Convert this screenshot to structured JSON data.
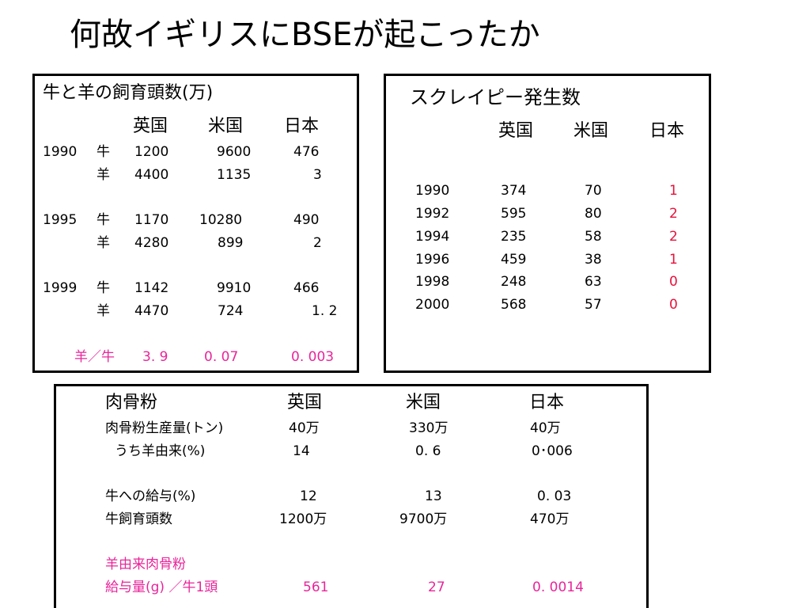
{
  "title": "何故イギリスにBSEが起こったか",
  "livestock": {
    "heading": "牛と羊の飼育頭数(万)",
    "columns": [
      "英国",
      "米国",
      "日本"
    ],
    "rows": [
      {
        "year": "1990",
        "kind": "牛",
        "uk": "1200",
        "us": "9600",
        "jp": "476"
      },
      {
        "year": "",
        "kind": "羊",
        "uk": "4400",
        "us": "1135",
        "jp": "3"
      },
      {
        "year": "1995",
        "kind": "牛",
        "uk": "1170",
        "us": "10280",
        "jp": "490"
      },
      {
        "year": "",
        "kind": "羊",
        "uk": "4280",
        "us": "899",
        "jp": "2"
      },
      {
        "year": "1999",
        "kind": "牛",
        "uk": "1142",
        "us": "9910",
        "jp": "466"
      },
      {
        "year": "",
        "kind": "羊",
        "uk": "4470",
        "us": "724",
        "jp": "1. 2"
      }
    ],
    "ratio": {
      "label": "羊／牛",
      "uk": "3. 9",
      "us": "0. 07",
      "jp": "0. 003"
    }
  },
  "scrapie": {
    "heading": "スクレイピー発生数",
    "columns": [
      "英国",
      "米国",
      "日本"
    ],
    "rows": [
      {
        "year": "1990",
        "uk": "374",
        "us": "70",
        "jp": "1"
      },
      {
        "year": "1992",
        "uk": "595",
        "us": "80",
        "jp": "2"
      },
      {
        "year": "1994",
        "uk": "235",
        "us": "58",
        "jp": "2"
      },
      {
        "year": "1996",
        "uk": "459",
        "us": "38",
        "jp": "1"
      },
      {
        "year": "1998",
        "uk": "248",
        "us": "63",
        "jp": "0"
      },
      {
        "year": "2000",
        "uk": "568",
        "us": "57",
        "jp": "0"
      }
    ]
  },
  "meatbone": {
    "heading": "肉骨粉",
    "columns": [
      "英国",
      "米国",
      "日本"
    ],
    "rows": [
      {
        "label": "肉骨粉生産量(トン)",
        "uk": "40万",
        "us": "330万",
        "jp": "40万"
      },
      {
        "label": "うち羊由来(%)",
        "uk": "14",
        "us": "0. 6",
        "jp": "0･006"
      },
      {
        "label": "牛への給与(%)",
        "uk": "12",
        "us": "13",
        "jp": "0. 03"
      },
      {
        "label": "牛飼育頭数",
        "uk": "1200万",
        "us": "9700万",
        "jp": "470万"
      }
    ],
    "sheep_label_1": "羊由来肉骨粉",
    "sheep_label_2": "給与量(g) ／牛1頭",
    "sheep_values": {
      "uk": "561",
      "us": "27",
      "jp": "0. 0014"
    }
  },
  "colors": {
    "pink": "#e8259a",
    "red": "#e8103a"
  }
}
